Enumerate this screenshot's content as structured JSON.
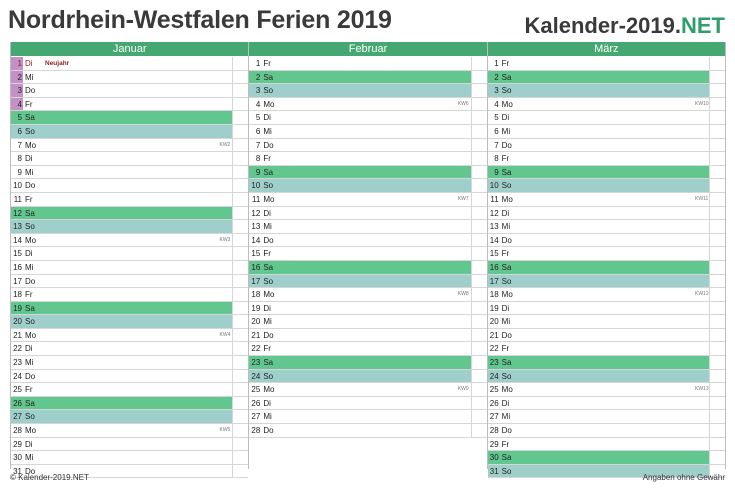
{
  "title": "Nordrhein-Westfalen Ferien 2019",
  "brand": {
    "main": "Kalender-2019.",
    "accent": "NET"
  },
  "footer": {
    "left": "© Kalender-2019.NET",
    "right": "Angaben ohne Gewähr"
  },
  "colors": {
    "header": "#45a872",
    "saturday": "#62c78f",
    "sunday": "#9fcfca",
    "school_holiday": "#c58fc7",
    "holiday_text": "#8b1e1e"
  },
  "months": [
    {
      "name": "Januar",
      "days": [
        {
          "n": "1",
          "wd": "Di",
          "note": "Neujahr",
          "hol": true,
          "sch": true
        },
        {
          "n": "2",
          "wd": "Mi",
          "sch": true
        },
        {
          "n": "3",
          "wd": "Do",
          "sch": true
        },
        {
          "n": "4",
          "wd": "Fr",
          "sch": true
        },
        {
          "n": "5",
          "wd": "Sa"
        },
        {
          "n": "6",
          "wd": "So"
        },
        {
          "n": "7",
          "wd": "Mo",
          "kw": "KW2"
        },
        {
          "n": "8",
          "wd": "Di"
        },
        {
          "n": "9",
          "wd": "Mi"
        },
        {
          "n": "10",
          "wd": "Do"
        },
        {
          "n": "11",
          "wd": "Fr"
        },
        {
          "n": "12",
          "wd": "Sa"
        },
        {
          "n": "13",
          "wd": "So"
        },
        {
          "n": "14",
          "wd": "Mo",
          "kw": "KW3"
        },
        {
          "n": "15",
          "wd": "Di"
        },
        {
          "n": "16",
          "wd": "Mi"
        },
        {
          "n": "17",
          "wd": "Do"
        },
        {
          "n": "18",
          "wd": "Fr"
        },
        {
          "n": "19",
          "wd": "Sa"
        },
        {
          "n": "20",
          "wd": "So"
        },
        {
          "n": "21",
          "wd": "Mo",
          "kw": "KW4"
        },
        {
          "n": "22",
          "wd": "Di"
        },
        {
          "n": "23",
          "wd": "Mi"
        },
        {
          "n": "24",
          "wd": "Do"
        },
        {
          "n": "25",
          "wd": "Fr"
        },
        {
          "n": "26",
          "wd": "Sa"
        },
        {
          "n": "27",
          "wd": "So"
        },
        {
          "n": "28",
          "wd": "Mo",
          "kw": "KW5"
        },
        {
          "n": "29",
          "wd": "Di"
        },
        {
          "n": "30",
          "wd": "Mi"
        },
        {
          "n": "31",
          "wd": "Do"
        }
      ]
    },
    {
      "name": "Februar",
      "days": [
        {
          "n": "1",
          "wd": "Fr"
        },
        {
          "n": "2",
          "wd": "Sa"
        },
        {
          "n": "3",
          "wd": "So"
        },
        {
          "n": "4",
          "wd": "Mo",
          "kw": "KW6"
        },
        {
          "n": "5",
          "wd": "Di"
        },
        {
          "n": "6",
          "wd": "Mi"
        },
        {
          "n": "7",
          "wd": "Do"
        },
        {
          "n": "8",
          "wd": "Fr"
        },
        {
          "n": "9",
          "wd": "Sa"
        },
        {
          "n": "10",
          "wd": "So"
        },
        {
          "n": "11",
          "wd": "Mo",
          "kw": "KW7"
        },
        {
          "n": "12",
          "wd": "Di"
        },
        {
          "n": "13",
          "wd": "Mi"
        },
        {
          "n": "14",
          "wd": "Do"
        },
        {
          "n": "15",
          "wd": "Fr"
        },
        {
          "n": "16",
          "wd": "Sa"
        },
        {
          "n": "17",
          "wd": "So"
        },
        {
          "n": "18",
          "wd": "Mo",
          "kw": "KW8"
        },
        {
          "n": "19",
          "wd": "Di"
        },
        {
          "n": "20",
          "wd": "Mi"
        },
        {
          "n": "21",
          "wd": "Do"
        },
        {
          "n": "22",
          "wd": "Fr"
        },
        {
          "n": "23",
          "wd": "Sa"
        },
        {
          "n": "24",
          "wd": "So"
        },
        {
          "n": "25",
          "wd": "Mo",
          "kw": "KW9"
        },
        {
          "n": "26",
          "wd": "Di"
        },
        {
          "n": "27",
          "wd": "Mi"
        },
        {
          "n": "28",
          "wd": "Do"
        }
      ]
    },
    {
      "name": "März",
      "days": [
        {
          "n": "1",
          "wd": "Fr"
        },
        {
          "n": "2",
          "wd": "Sa"
        },
        {
          "n": "3",
          "wd": "So"
        },
        {
          "n": "4",
          "wd": "Mo",
          "kw": "KW10"
        },
        {
          "n": "5",
          "wd": "Di"
        },
        {
          "n": "6",
          "wd": "Mi"
        },
        {
          "n": "7",
          "wd": "Do"
        },
        {
          "n": "8",
          "wd": "Fr"
        },
        {
          "n": "9",
          "wd": "Sa"
        },
        {
          "n": "10",
          "wd": "So"
        },
        {
          "n": "11",
          "wd": "Mo",
          "kw": "KW11"
        },
        {
          "n": "12",
          "wd": "Di"
        },
        {
          "n": "13",
          "wd": "Mi"
        },
        {
          "n": "14",
          "wd": "Do"
        },
        {
          "n": "15",
          "wd": "Fr"
        },
        {
          "n": "16",
          "wd": "Sa"
        },
        {
          "n": "17",
          "wd": "So"
        },
        {
          "n": "18",
          "wd": "Mo",
          "kw": "KW12"
        },
        {
          "n": "19",
          "wd": "Di"
        },
        {
          "n": "20",
          "wd": "Mi"
        },
        {
          "n": "21",
          "wd": "Do"
        },
        {
          "n": "22",
          "wd": "Fr"
        },
        {
          "n": "23",
          "wd": "Sa"
        },
        {
          "n": "24",
          "wd": "So"
        },
        {
          "n": "25",
          "wd": "Mo",
          "kw": "KW13"
        },
        {
          "n": "26",
          "wd": "Di"
        },
        {
          "n": "27",
          "wd": "Mi"
        },
        {
          "n": "28",
          "wd": "Do"
        },
        {
          "n": "29",
          "wd": "Fr"
        },
        {
          "n": "30",
          "wd": "Sa"
        },
        {
          "n": "31",
          "wd": "So"
        }
      ]
    }
  ]
}
